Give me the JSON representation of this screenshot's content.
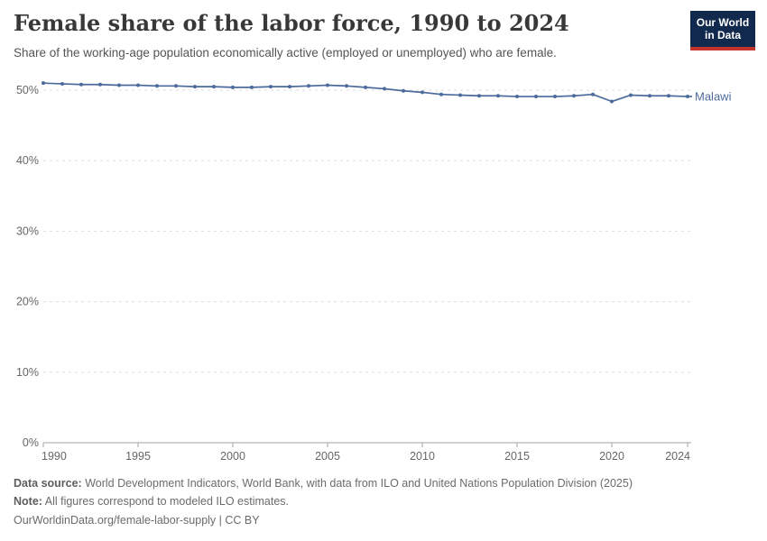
{
  "header": {
    "title": "Female share of the labor force, 1990 to 2024",
    "subtitle": "Share of the working-age population economically active (employed or unemployed) who are female."
  },
  "logo": {
    "line1": "Our World",
    "line2": "in Data",
    "bg_color": "#12294e",
    "accent_color": "#c5342a"
  },
  "chart_data": {
    "type": "line",
    "title": "Female share of the labor force, 1990 to 2024",
    "xlabel": "",
    "ylabel": "",
    "x": [
      1990,
      1991,
      1992,
      1993,
      1994,
      1995,
      1996,
      1997,
      1998,
      1999,
      2000,
      2001,
      2002,
      2003,
      2004,
      2005,
      2006,
      2007,
      2008,
      2009,
      2010,
      2011,
      2012,
      2013,
      2014,
      2015,
      2016,
      2017,
      2018,
      2019,
      2020,
      2021,
      2022,
      2023,
      2024
    ],
    "series": [
      {
        "name": "Malawi",
        "color": "#4C6A9C",
        "values": [
          51.0,
          50.9,
          50.8,
          50.8,
          50.7,
          50.7,
          50.6,
          50.6,
          50.5,
          50.5,
          50.4,
          50.4,
          50.5,
          50.5,
          50.6,
          50.7,
          50.6,
          50.4,
          50.2,
          49.9,
          49.7,
          49.4,
          49.3,
          49.2,
          49.2,
          49.1,
          49.1,
          49.1,
          49.2,
          49.4,
          48.4,
          49.3,
          49.2,
          49.2,
          49.1
        ]
      }
    ],
    "xlim": [
      1990,
      2024
    ],
    "ylim": [
      0,
      52
    ],
    "xticks": [
      1990,
      1995,
      2000,
      2005,
      2010,
      2015,
      2020,
      2024
    ],
    "yticks": [
      0,
      10,
      20,
      30,
      40,
      50
    ],
    "ytick_suffix": "%",
    "grid": "horizontal-dashed",
    "grid_color": "#dddddd",
    "axis_color": "#a3a3a3",
    "tick_label_color": "#666666",
    "legend_position": "end-of-line",
    "entity_label": "Malawi"
  },
  "footer": {
    "source_label": "Data source:",
    "source_text": " World Development Indicators, World Bank, with data from ILO and United Nations Population Division (2025)",
    "note_label": "Note:",
    "note_text": " All figures correspond to modeled ILO estimates.",
    "license_text": "OurWorldinData.org/female-labor-supply | CC BY"
  }
}
